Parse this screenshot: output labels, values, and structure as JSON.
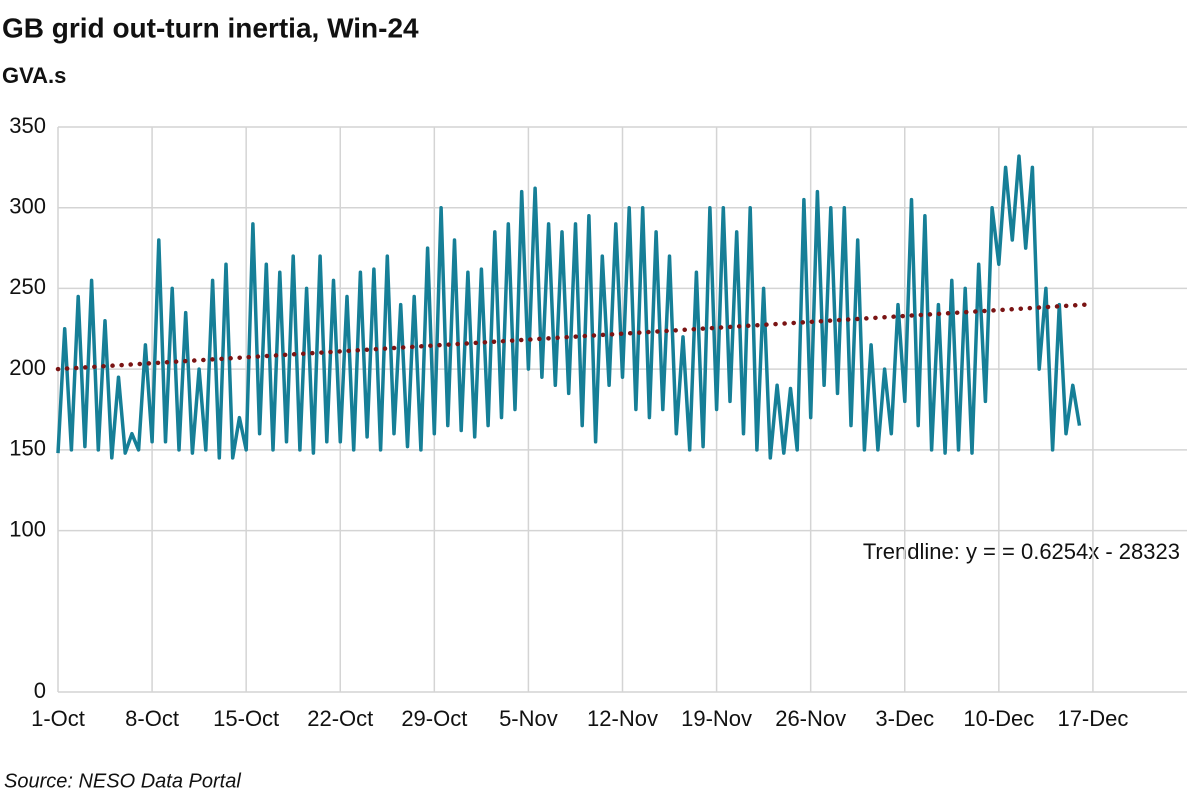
{
  "chart_data": {
    "type": "line",
    "title": "GB grid out-turn inertia, Win-24",
    "subtitle": "GVA.s",
    "source": "Source: NESO Data Portal",
    "annotation": "Trendline: y = = 0.6254x - 28323",
    "series": [
      {
        "color": "#167f97",
        "x": [
          0,
          0.5,
          1,
          1.5,
          2,
          2.5,
          3,
          3.5,
          4,
          4.5,
          5,
          5.5,
          6,
          6.5,
          7,
          7.5,
          8,
          8.5,
          9,
          9.5,
          10,
          10.5,
          11,
          11.5,
          12,
          12.5,
          13,
          13.5,
          14,
          14.5,
          15,
          15.5,
          16,
          16.5,
          17,
          17.5,
          18,
          18.5,
          19,
          19.5,
          20,
          20.5,
          21,
          21.5,
          22,
          22.5,
          23,
          23.5,
          24,
          24.5,
          25,
          25.5,
          26,
          26.5,
          27,
          27.5,
          28,
          28.5,
          29,
          29.5,
          30,
          30.5,
          31,
          31.5,
          32,
          32.5,
          33,
          33.5,
          34,
          34.5,
          35,
          35.5,
          36,
          36.5,
          37,
          37.5,
          38,
          38.5,
          39,
          39.5,
          40,
          40.5,
          41,
          41.5,
          42,
          42.5,
          43,
          43.5,
          44,
          44.5,
          45,
          45.5,
          46,
          46.5,
          47,
          47.5,
          48,
          48.5,
          49,
          49.5,
          50,
          50.5,
          51,
          51.5,
          52,
          52.5,
          53,
          53.5,
          54,
          54.5,
          55,
          55.5,
          56,
          56.5,
          57,
          57.5,
          58,
          58.5,
          59,
          59.5,
          60,
          60.5,
          61,
          61.5,
          62,
          62.5,
          63,
          63.5,
          64,
          64.5,
          65,
          65.5,
          66,
          66.5,
          67,
          67.5,
          68,
          68.5,
          69,
          69.5,
          70,
          70.5,
          71,
          71.5,
          72,
          72.5,
          73,
          73.5,
          74,
          74.5,
          75,
          75.5,
          76
        ],
        "values": [
          148,
          225,
          150,
          245,
          152,
          255,
          150,
          230,
          145,
          195,
          148,
          160,
          150,
          215,
          155,
          280,
          155,
          250,
          150,
          235,
          148,
          200,
          150,
          255,
          145,
          265,
          145,
          170,
          150,
          290,
          160,
          265,
          150,
          260,
          155,
          270,
          150,
          250,
          148,
          270,
          155,
          255,
          155,
          245,
          150,
          260,
          158,
          262,
          150,
          270,
          160,
          240,
          152,
          245,
          150,
          275,
          160,
          300,
          165,
          280,
          162,
          260,
          158,
          262,
          165,
          285,
          170,
          290,
          175,
          310,
          200,
          312,
          195,
          290,
          190,
          285,
          185,
          290,
          165,
          295,
          155,
          270,
          190,
          290,
          195,
          300,
          175,
          300,
          170,
          285,
          175,
          270,
          160,
          220,
          150,
          260,
          152,
          300,
          175,
          300,
          180,
          285,
          160,
          300,
          150,
          250,
          145,
          190,
          148,
          188,
          150,
          305,
          170,
          310,
          190,
          300,
          185,
          300,
          165,
          280,
          150,
          215,
          150,
          200,
          160,
          240,
          180,
          305,
          165,
          295,
          150,
          240,
          148,
          255,
          150,
          250,
          148,
          265,
          180,
          300,
          265,
          325,
          280,
          332,
          275,
          325,
          200,
          250,
          150,
          240,
          160,
          190,
          165
        ]
      }
    ],
    "trendline": {
      "color": "#7a1414",
      "x": [
        0,
        76.5
      ],
      "values": [
        200,
        240
      ]
    },
    "xlim": [
      0,
      84
    ],
    "xticks": [
      {
        "value": 0,
        "label": "1-Oct"
      },
      {
        "value": 7,
        "label": "8-Oct"
      },
      {
        "value": 14,
        "label": "15-Oct"
      },
      {
        "value": 21,
        "label": "22-Oct"
      },
      {
        "value": 28,
        "label": "29-Oct"
      },
      {
        "value": 35,
        "label": "5-Nov"
      },
      {
        "value": 42,
        "label": "12-Nov"
      },
      {
        "value": 49,
        "label": "19-Nov"
      },
      {
        "value": 56,
        "label": "26-Nov"
      },
      {
        "value": 63,
        "label": "3-Dec"
      },
      {
        "value": 70,
        "label": "10-Dec"
      },
      {
        "value": 77,
        "label": "17-Dec"
      }
    ],
    "ylim": [
      0,
      350
    ],
    "yticks": [
      0,
      100,
      150,
      200,
      250,
      300,
      350
    ],
    "grid": true
  }
}
